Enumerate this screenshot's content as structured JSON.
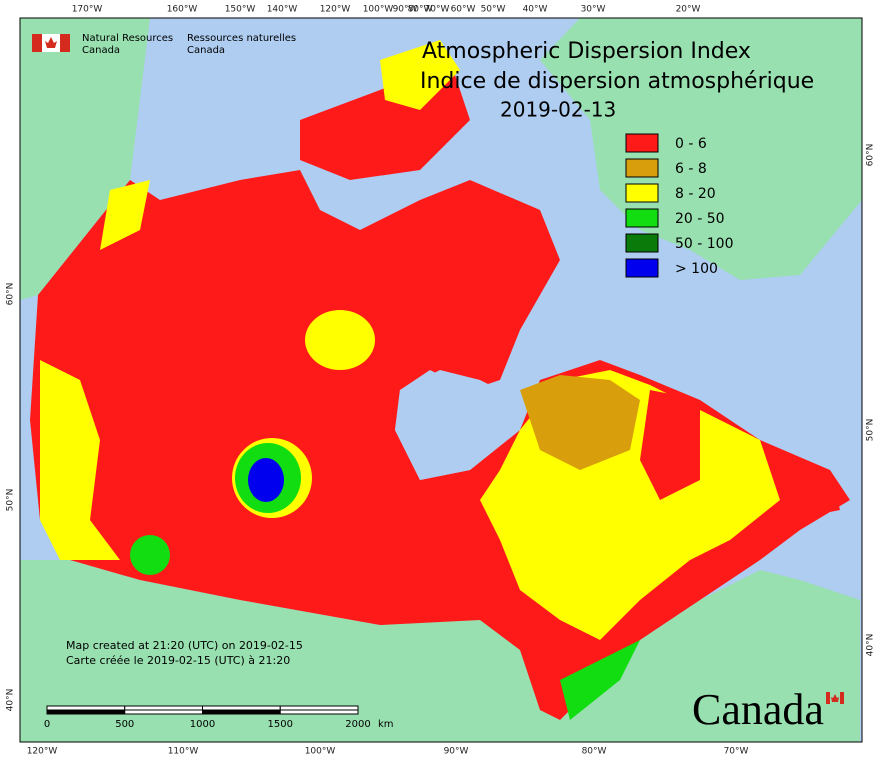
{
  "header": {
    "title_en": "Atmospheric Dispersion Index",
    "title_fr": "Indice de dispersion atmosphérique",
    "date": "2019-02-13"
  },
  "agency": {
    "name_en": [
      "Natural Resources",
      "Canada"
    ],
    "name_fr": [
      "Ressources naturelles",
      "Canada"
    ]
  },
  "legend": [
    {
      "label": "0 - 6",
      "color": "#ff1a1a"
    },
    {
      "label": "6 - 8",
      "color": "#d99e0b"
    },
    {
      "label": "8 - 20",
      "color": "#ffff00"
    },
    {
      "label": "20 - 50",
      "color": "#11dd11"
    },
    {
      "label": "50 - 100",
      "color": "#0a7a0a"
    },
    {
      "label": "> 100",
      "color": "#0000ee"
    }
  ],
  "graticule": {
    "top": [
      "170°W",
      "160°W",
      "150°W",
      "140°W",
      "120°W",
      "100°W",
      "90°W",
      "80°W",
      "70°W",
      "60°W",
      "50°W",
      "40°W",
      "30°W",
      "20°W"
    ],
    "bottom": [
      "120°W",
      "110°W",
      "100°W",
      "90°W",
      "80°W",
      "70°W"
    ],
    "left": [
      "60°N",
      "50°N",
      "40°N"
    ],
    "right": [
      "60°N",
      "50°N",
      "40°N"
    ]
  },
  "credits": {
    "created_en": "Map created at 21:20 (UTC) on 2019-02-15",
    "created_fr": "Carte créée le 2019-02-15 (UTC) à 21:20"
  },
  "scale_bar": {
    "labels": [
      "0",
      "500",
      "1000",
      "1500",
      "2000"
    ],
    "unit": "km"
  },
  "wordmark": "Canada"
}
